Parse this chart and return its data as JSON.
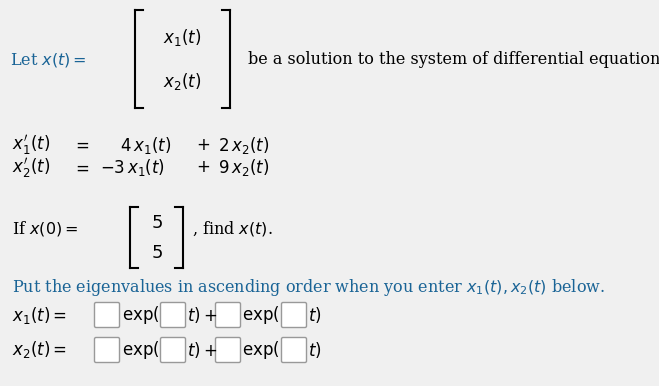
{
  "bg_color": "#f0f0f0",
  "text_color": "#000000",
  "blue_color": "#1a6496",
  "fig_width": 6.59,
  "fig_height": 3.86,
  "dpi": 100
}
